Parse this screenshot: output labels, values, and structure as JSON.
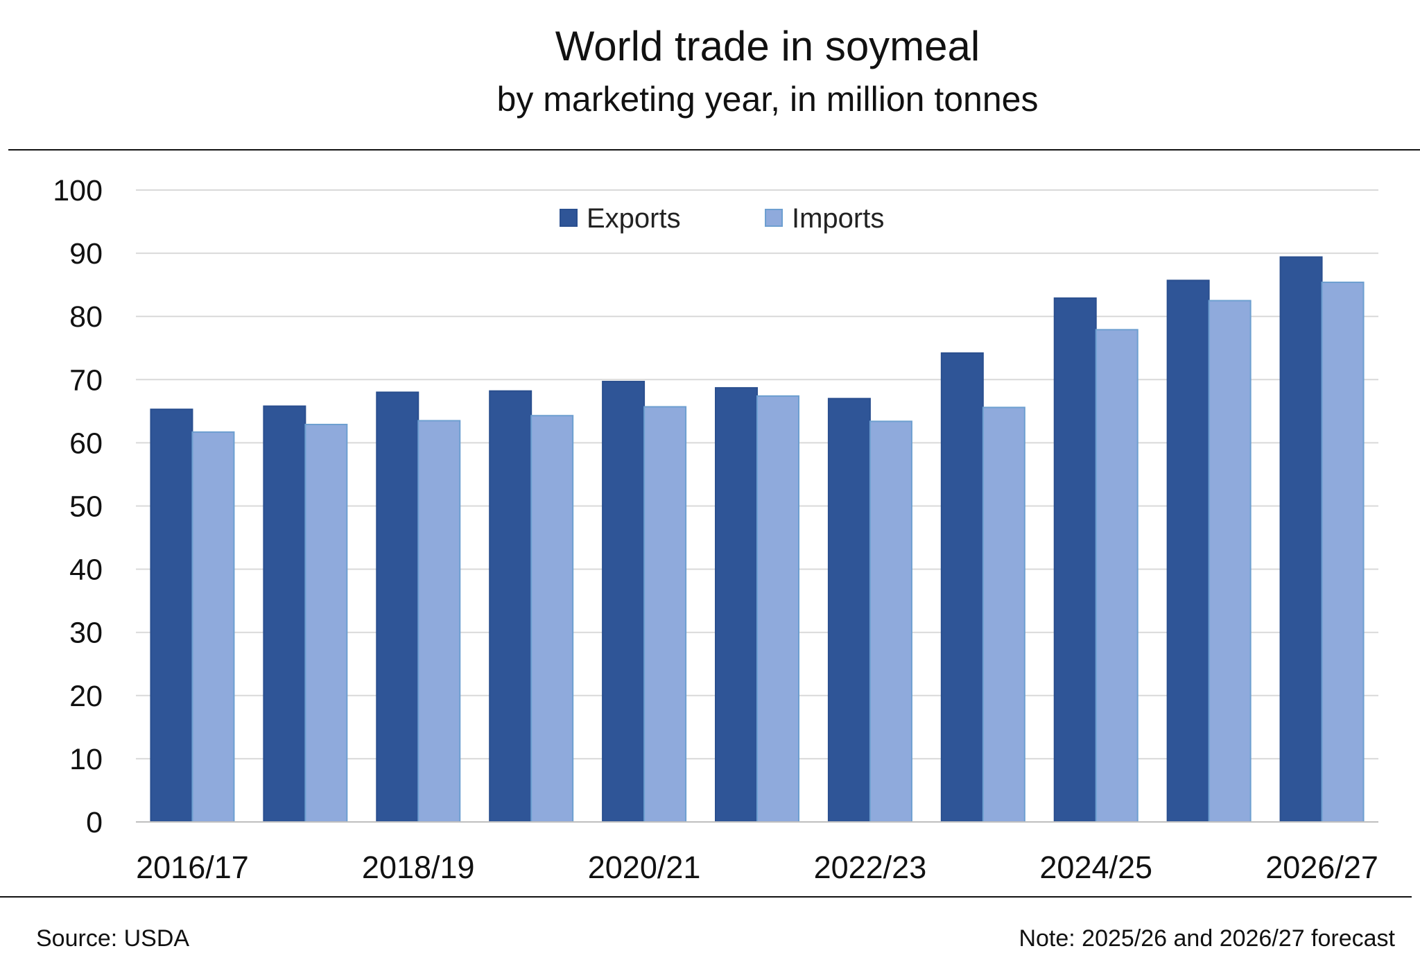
{
  "chart_data": {
    "type": "bar",
    "title": "World trade in soymeal",
    "subtitle": "by marketing year, in million tonnes",
    "categories": [
      "2016/17",
      "2017/18",
      "2018/19",
      "2019/20",
      "2020/21",
      "2021/22",
      "2022/23",
      "2023/24",
      "2024/25",
      "2025/26",
      "2026/27"
    ],
    "tick_labels_x": [
      "2016/17",
      "2018/19",
      "2020/21",
      "2022/23",
      "2024/25",
      "2026/27"
    ],
    "series": [
      {
        "name": "Exports",
        "color": "#2f5597",
        "values": [
          65.3,
          65.8,
          68.0,
          68.2,
          69.7,
          68.7,
          67.0,
          74.2,
          82.9,
          85.7,
          89.4
        ]
      },
      {
        "name": "Imports",
        "color": "#8faadc",
        "values": [
          61.7,
          62.9,
          63.5,
          64.3,
          65.7,
          67.4,
          63.4,
          65.6,
          77.9,
          82.5,
          85.4
        ]
      }
    ],
    "ylim": [
      0,
      100
    ],
    "yticks": [
      0,
      10,
      20,
      30,
      40,
      50,
      60,
      70,
      80,
      90,
      100
    ],
    "grid": true,
    "legend_position": "top-center",
    "source": "Source: USDA",
    "note": "Note: 2025/26 and 2026/27 forecast"
  }
}
